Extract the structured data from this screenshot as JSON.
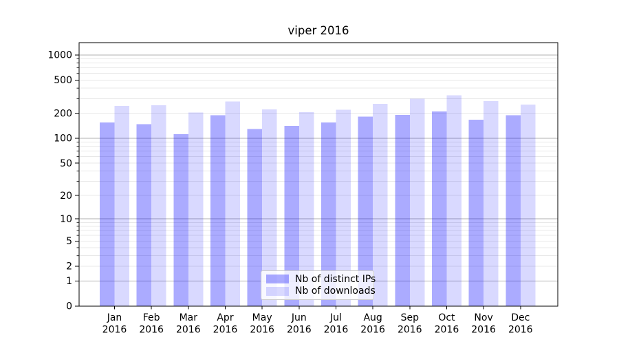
{
  "chart_data": {
    "type": "bar",
    "title": "viper 2016",
    "xlabel": "",
    "ylabel": "",
    "yscale": "log1p",
    "ylim": [
      0,
      1400
    ],
    "grid": "both",
    "legend_position": "lower center",
    "categories": [
      "Jan 2016",
      "Feb 2016",
      "Mar 2016",
      "Apr 2016",
      "May 2016",
      "Jun 2016",
      "Jul 2016",
      "Aug 2016",
      "Sep 2016",
      "Oct 2016",
      "Nov 2016",
      "Dec 2016"
    ],
    "series": [
      {
        "name": "Nb of distinct IPs",
        "color": "#0000FF",
        "fill_alpha": 0.33,
        "values": [
          155,
          148,
          112,
          190,
          130,
          141,
          155,
          182,
          192,
          210,
          167,
          190
        ]
      },
      {
        "name": "Nb of downloads",
        "color": "#0000FF",
        "fill_alpha": 0.15,
        "values": [
          245,
          250,
          205,
          278,
          222,
          207,
          220,
          260,
          300,
          330,
          280,
          254
        ]
      }
    ],
    "y_labeled_ticks": [
      0,
      1,
      2,
      5,
      10,
      20,
      50,
      100,
      200,
      500,
      1000
    ],
    "y_major_gridlines": [
      1,
      10,
      100,
      1000
    ],
    "y_minor_gridlines": [
      2,
      3,
      4,
      5,
      6,
      7,
      8,
      9,
      20,
      30,
      40,
      50,
      60,
      70,
      80,
      90,
      200,
      300,
      400,
      500,
      600,
      700,
      800,
      900
    ],
    "colors": {
      "grid_major": "#b0b0b0",
      "grid_minor": "#e8e8e8",
      "axis": "#000000",
      "text": "#000000"
    }
  }
}
